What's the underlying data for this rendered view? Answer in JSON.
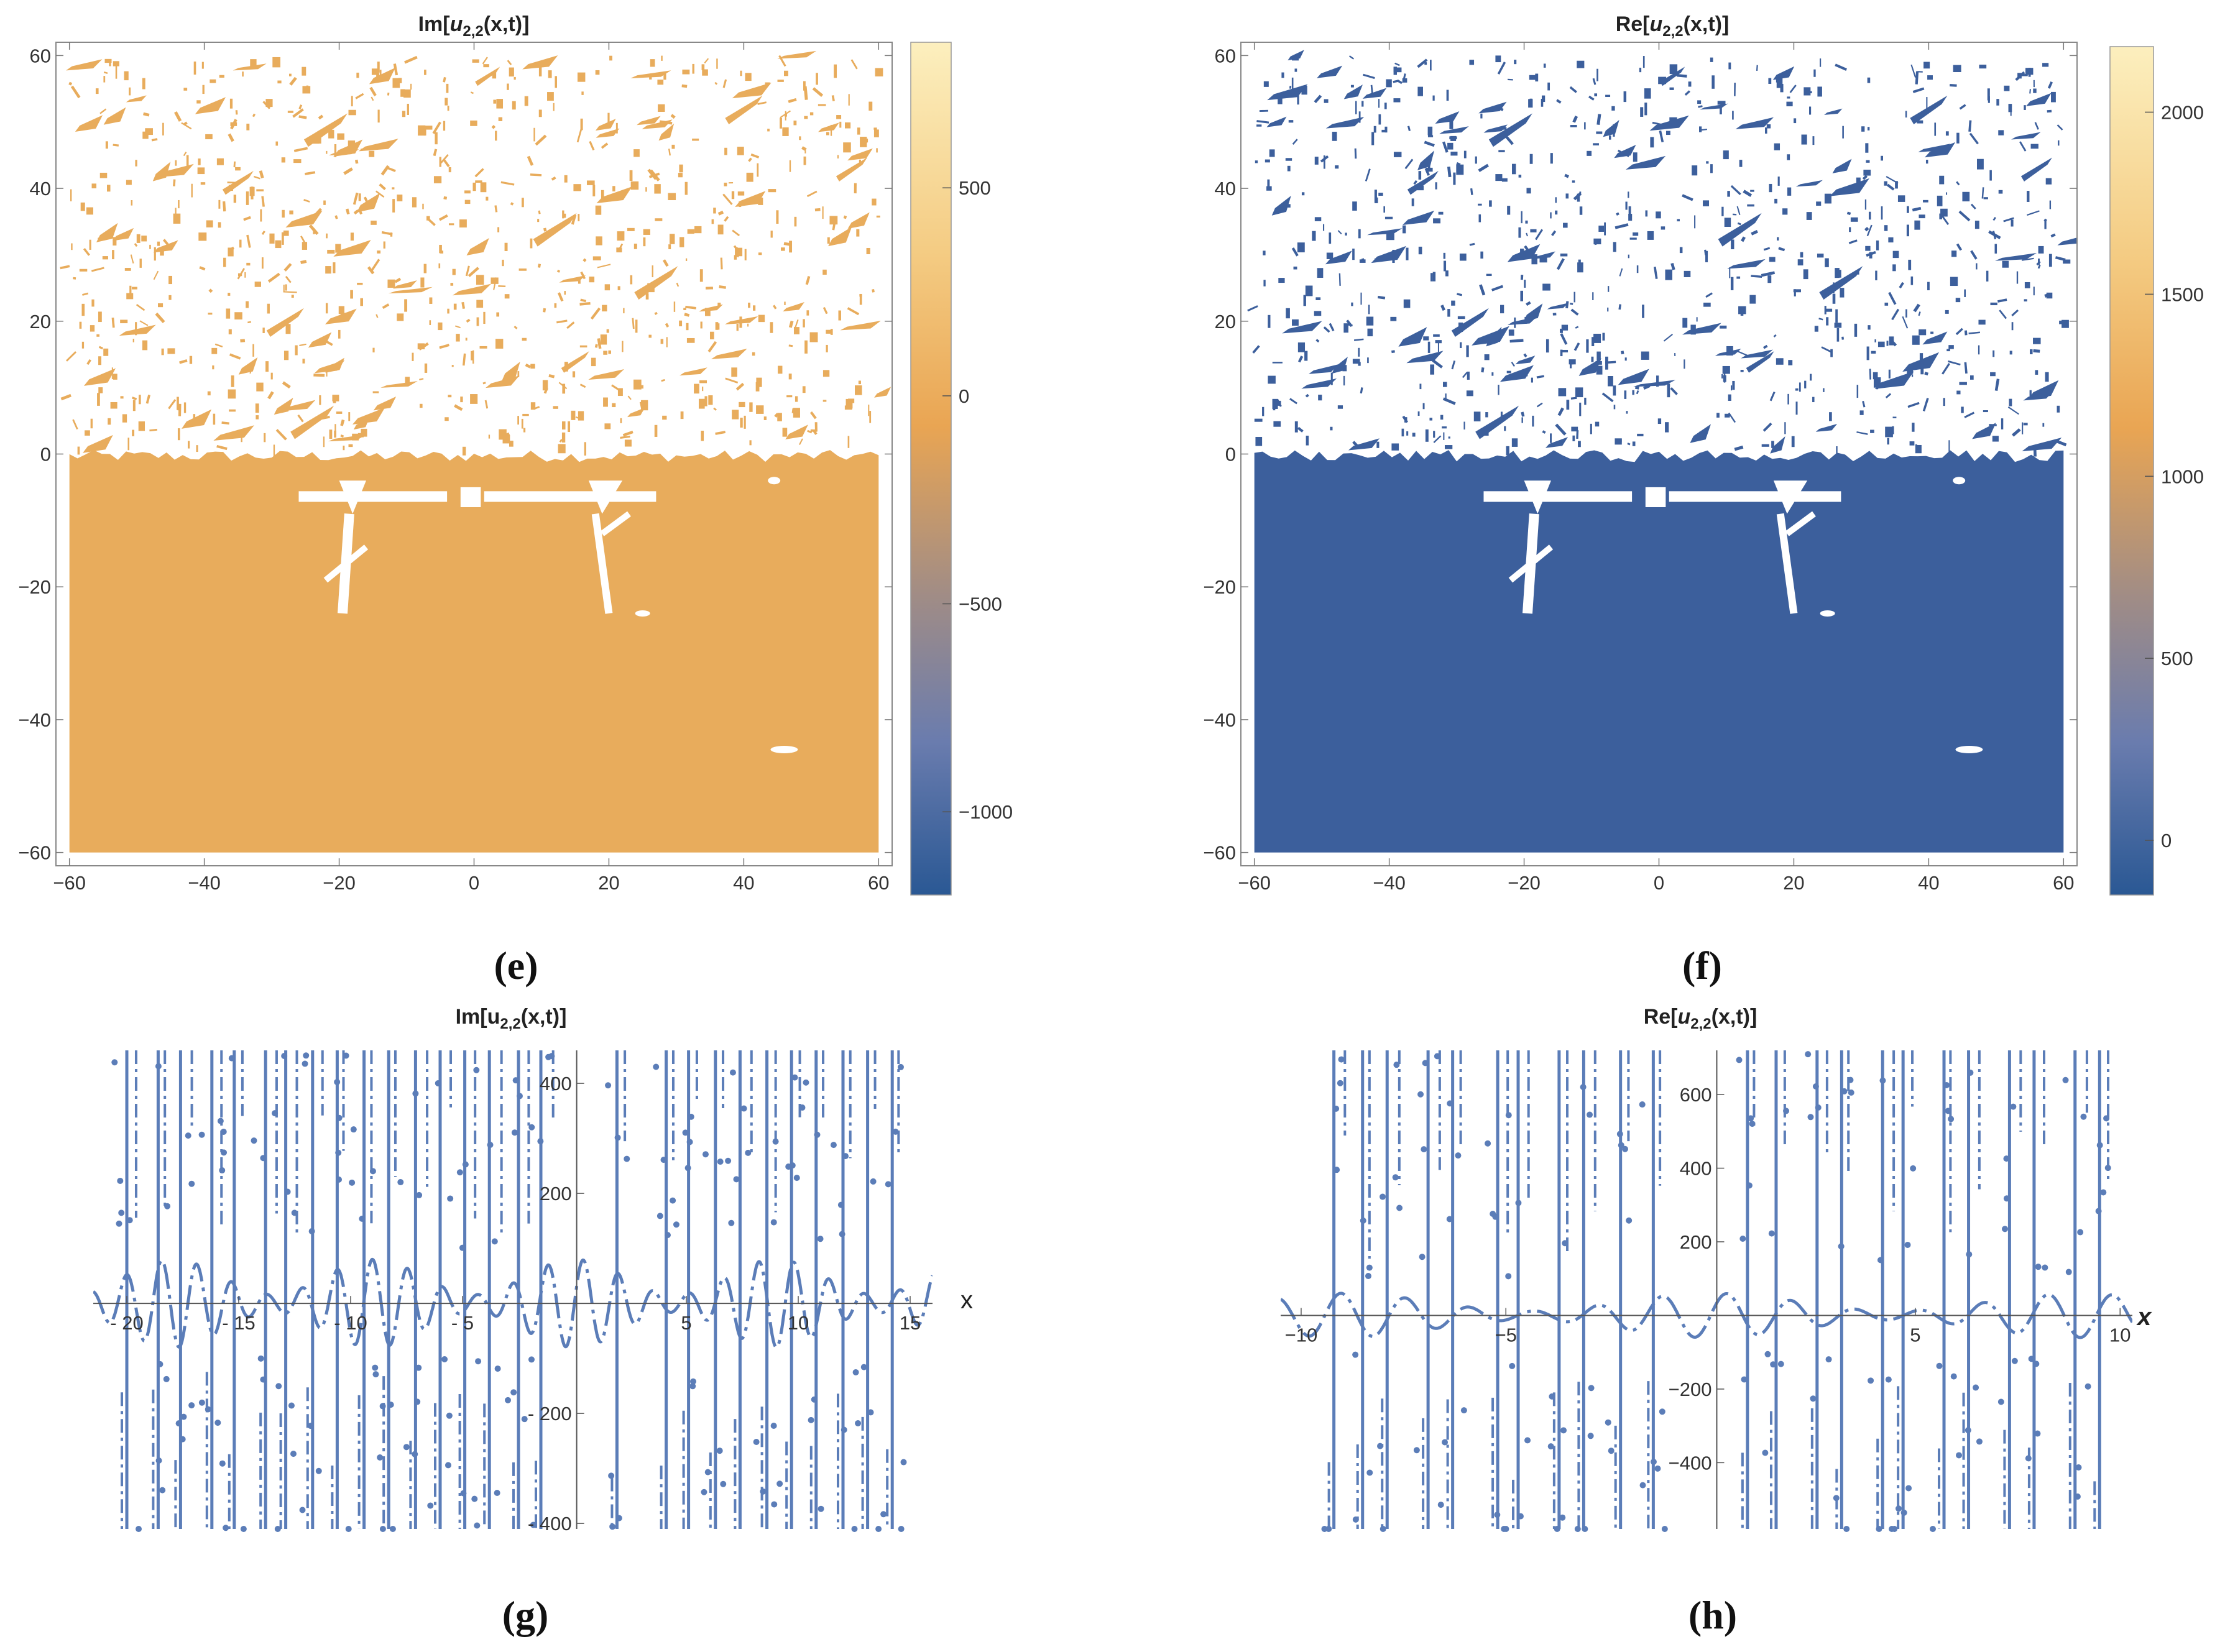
{
  "figure": {
    "panels": [
      "(e)",
      "(f)",
      "(g)",
      "(h)"
    ]
  },
  "colors": {
    "orange": "#E8AC5C",
    "blue": "#3C5F9C",
    "line": "#5B7DB8",
    "frame": "#888888"
  },
  "chart_data": [
    {
      "id": "e",
      "type": "heatmap",
      "title": "Im[u2,2(x,t)]",
      "title_parts": {
        "pre": "Im[",
        "base": "u",
        "sub": "2,2",
        "post": "(x,t)]"
      },
      "xlim": [
        -62,
        62
      ],
      "ylim": [
        -62,
        62
      ],
      "xticks": [
        -60,
        -40,
        -20,
        0,
        20,
        40,
        60
      ],
      "yticks": [
        -60,
        -40,
        -20,
        0,
        20,
        40,
        60
      ],
      "xtick_labels": [
        "−60",
        "−40",
        "−20",
        "0",
        "20",
        "40",
        "60"
      ],
      "ytick_labels": [
        "−60",
        "−40",
        "−20",
        "0",
        "20",
        "40",
        "60"
      ],
      "fill_color": "#E8AC5C",
      "filled_region": "t ≤ 0 solid, scattered fragments for t > 0",
      "colorbar": {
        "range": [
          -1200,
          850
        ],
        "ticks": [
          500,
          0,
          -500,
          -1000
        ],
        "tick_labels": [
          "500",
          "0",
          "−500",
          "−1000"
        ],
        "colors": [
          "#FCEFBE",
          "#E9A553",
          "#7B82A3",
          "#2A5894"
        ]
      }
    },
    {
      "id": "f",
      "type": "heatmap",
      "title": "Re[u2,2(x,t)]",
      "title_parts": {
        "pre": "Re[",
        "base": "u",
        "sub": "2,2",
        "post": "(x,t)]"
      },
      "xlim": [
        -62,
        62
      ],
      "ylim": [
        -62,
        62
      ],
      "xticks": [
        -60,
        -40,
        -20,
        0,
        20,
        40,
        60
      ],
      "yticks": [
        -60,
        -40,
        -20,
        0,
        20,
        40,
        60
      ],
      "xtick_labels": [
        "−60",
        "−40",
        "−20",
        "0",
        "20",
        "40",
        "60"
      ],
      "ytick_labels": [
        "−60",
        "−40",
        "−20",
        "0",
        "20",
        "40",
        "60"
      ],
      "fill_color": "#3C5F9C",
      "filled_region": "t ≤ 0 solid, scattered fragments for t > 0",
      "colorbar": {
        "range": [
          -150,
          2180
        ],
        "ticks": [
          2000,
          1500,
          1000,
          500,
          0
        ],
        "tick_labels": [
          "2000",
          "1500",
          "1000",
          "500",
          "0"
        ],
        "colors": [
          "#FCEFBE",
          "#E9A553",
          "#7B82A3",
          "#2A5894"
        ]
      }
    },
    {
      "id": "g",
      "type": "line",
      "title": "Im[u2,2(x,t)]",
      "title_parts": {
        "pre": "Im[",
        "base": "u",
        "sub": "2,2",
        "post": "(x,t)]"
      },
      "xlabel": "x",
      "xlim": [
        -21.5,
        16
      ],
      "ylim": [
        -410,
        460
      ],
      "xticks": [
        -20,
        -15,
        -10,
        -5,
        5,
        10,
        15
      ],
      "xtick_labels": [
        "- 20",
        "- 15",
        "- 10",
        "- 5",
        "5",
        "10",
        "15"
      ],
      "yticks": [
        400,
        200,
        -200,
        -400
      ],
      "ytick_labels": [
        "400",
        "200",
        "- 200",
        "- 400"
      ],
      "series": [
        {
          "name": "oscillation amplitude",
          "x_period": 1.57,
          "base_amplitude": 80
        }
      ],
      "spike_x": [
        -20.0,
        -18.6,
        -17.6,
        -16.2,
        -15.2,
        -13.8,
        -12.9,
        -11.7,
        -10.6,
        -9.4,
        -8.3,
        -7.1,
        -6.0,
        -4.9,
        -3.8,
        -2.5,
        -1.5,
        1.9,
        4.1,
        5.1,
        6.3,
        7.4,
        8.6,
        9.7,
        10.8,
        12.0,
        13.1,
        14.2
      ]
    },
    {
      "id": "h",
      "type": "line",
      "title": "Re[u2,2(x,t)]",
      "title_parts": {
        "pre": "Re[",
        "base": "u",
        "sub": "2,2",
        "post": "(x,t)]"
      },
      "xlabel": "x",
      "xlim": [
        -10.5,
        10.3
      ],
      "ylim": [
        -580,
        720
      ],
      "xticks": [
        -10,
        -5,
        5,
        10
      ],
      "xtick_labels": [
        "−10",
        "−5",
        "5",
        "10"
      ],
      "yticks": [
        600,
        400,
        200,
        -200,
        -400
      ],
      "ytick_labels": [
        "600",
        "400",
        "200",
        "−200",
        "−400"
      ],
      "series": [
        {
          "name": "oscillation amplitude",
          "x_period": 1.57,
          "base_amplitude": 60
        }
      ],
      "spike_x": [
        -9.2,
        -8.5,
        -7.9,
        -6.9,
        -6.3,
        -5.2,
        -4.7,
        -3.7,
        -3.1,
        -2.2,
        -1.4,
        0.9,
        1.6,
        2.6,
        3.2,
        4.2,
        4.7,
        5.7,
        6.3,
        7.3,
        7.9,
        8.9,
        9.5
      ]
    }
  ]
}
